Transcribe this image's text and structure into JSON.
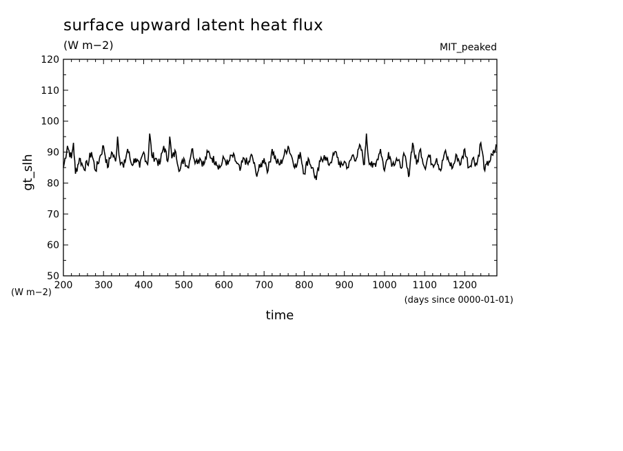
{
  "chart_data": {
    "type": "line",
    "title": "surface upward latent heat flux",
    "units_label": "(W m−2)",
    "annotation": "MIT_peaked",
    "ylabel": "gt_slh",
    "yunits_label": "(W m−2)",
    "xlabel": "time",
    "xunits_label": "(days since 0000-01-01)",
    "xlim": [
      200,
      1280
    ],
    "ylim": [
      50,
      120
    ],
    "xticks": [
      200,
      300,
      400,
      500,
      600,
      700,
      800,
      900,
      1000,
      1100,
      1200
    ],
    "yticks": [
      50,
      60,
      70,
      80,
      90,
      100,
      110,
      120
    ],
    "grid": false,
    "series": [
      {
        "color": "#000000",
        "x": [
          200,
          210,
          220,
          225,
          230,
          240,
          250,
          260,
          270,
          280,
          290,
          300,
          310,
          320,
          330,
          335,
          340,
          350,
          360,
          370,
          380,
          390,
          400,
          410,
          415,
          420,
          430,
          440,
          450,
          460,
          465,
          470,
          480,
          490,
          500,
          510,
          520,
          530,
          540,
          550,
          560,
          570,
          580,
          590,
          600,
          610,
          620,
          630,
          640,
          650,
          660,
          670,
          680,
          690,
          700,
          710,
          720,
          730,
          740,
          750,
          760,
          770,
          780,
          790,
          800,
          810,
          820,
          830,
          840,
          850,
          860,
          870,
          880,
          890,
          900,
          910,
          920,
          930,
          940,
          950,
          955,
          960,
          970,
          980,
          990,
          1000,
          1010,
          1020,
          1030,
          1040,
          1050,
          1060,
          1065,
          1070,
          1080,
          1090,
          1100,
          1110,
          1120,
          1130,
          1140,
          1150,
          1160,
          1170,
          1180,
          1190,
          1200,
          1210,
          1220,
          1230,
          1240,
          1250,
          1260,
          1270,
          1280
        ],
        "y": [
          85,
          92,
          88,
          93,
          83,
          88,
          85,
          86,
          90,
          84,
          88,
          92,
          85,
          90,
          87,
          95,
          88,
          85,
          91,
          86,
          88,
          85,
          90,
          86,
          96,
          89,
          88,
          86,
          92,
          87,
          95,
          88,
          90,
          84,
          88,
          85,
          91,
          87,
          88,
          86,
          90,
          88,
          87,
          85,
          88,
          86,
          89,
          87,
          84,
          88,
          86,
          89,
          83,
          85,
          88,
          84,
          91,
          87,
          86,
          89,
          92,
          88,
          85,
          90,
          83,
          88,
          85,
          81,
          87,
          89,
          86,
          88,
          90,
          85,
          87,
          85,
          89,
          88,
          92,
          86,
          96,
          88,
          85,
          87,
          91,
          84,
          90,
          86,
          88,
          85,
          89,
          82,
          88,
          93,
          86,
          91,
          85,
          89,
          86,
          88,
          84,
          90,
          87,
          85,
          89,
          86,
          91,
          85,
          88,
          86,
          93,
          84,
          87,
          89,
          92
        ]
      }
    ]
  }
}
